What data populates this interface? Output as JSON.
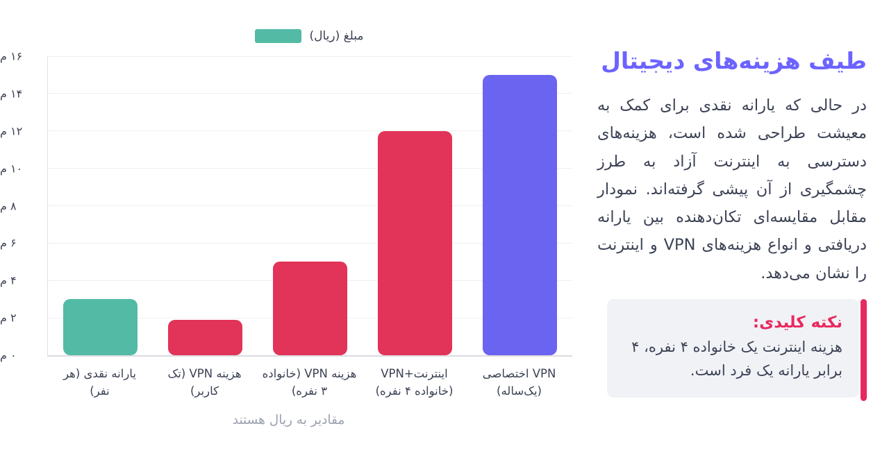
{
  "chart_data": {
    "type": "bar",
    "title": "",
    "categories": [
      "یارانه نقدی (هر نفر)",
      "هزینه VPN (تک کاربر)",
      "هزینه VPN (خانواده ۳ نفره)",
      "اینترنت+VPN (خانواده ۴ نفره)",
      "VPN اختصاصی (یک‌ساله)"
    ],
    "values": [
      3000000,
      1900000,
      5000000,
      12000000,
      15000000
    ],
    "bar_colors": [
      "#53BBA5",
      "#E23358",
      "#E23358",
      "#E23358",
      "#6A64F1"
    ],
    "series_label": "مبلغ (ریال)",
    "series_color": "#53BBA5",
    "xlabel": "مقادیر به ریال هستند",
    "ylabel": "",
    "ylim": [
      0,
      16000000
    ],
    "ytick_step": 2000000,
    "ytick_labels": [
      "۰ م",
      "۲ م",
      "۴ م",
      "۶ م",
      "۸ م",
      "۱۰ م",
      "۱۲ م",
      "۱۴ م",
      "۱۶ م"
    ],
    "grid": true,
    "legend_position": "top-center"
  },
  "panel": {
    "title": "طیف هزینه‌های دیجیتال",
    "title_color": "#6C63FF",
    "paragraph": "در حالی که یارانه نقدی برای کمک به معیشت طراحی شده است، هزینه‌های دسترسی به اینترنت آزاد به طرز چشمگیری از آن پیشی گرفته‌اند. نمودار مقابل مقایسه‌ای تکان‌دهنده بین یارانه دریافتی و انواع هزینه‌های VPN و اینترنت را نشان می‌دهد.",
    "note": {
      "title": "نکته کلیدی:",
      "body": "هزینه اینترنت یک خانواده ۴ نفره، ۴ برابر یارانه یک فرد است.",
      "accent_color": "#E8295F",
      "background": "#F1F2F6"
    }
  }
}
